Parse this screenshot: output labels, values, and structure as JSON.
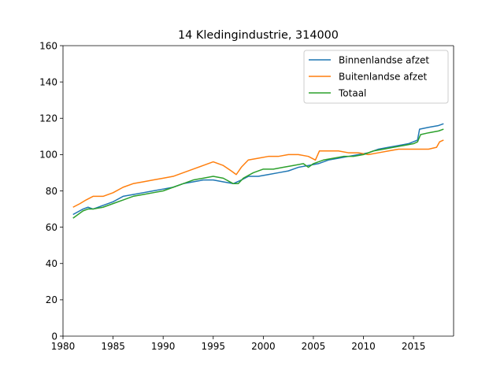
{
  "chart_data": {
    "type": "line",
    "title": "14 Kledingindustrie, 314000",
    "xlabel": "",
    "ylabel": "",
    "xlim": [
      1980,
      2019
    ],
    "ylim": [
      0,
      160
    ],
    "xticks": [
      1980,
      1985,
      1990,
      1995,
      2000,
      2005,
      2010,
      2015
    ],
    "yticks": [
      0,
      20,
      40,
      60,
      80,
      100,
      120,
      140,
      160
    ],
    "grid": false,
    "legend_position": "top-right",
    "series": [
      {
        "name": "Binnenlandse afzet",
        "color": "#1f77b4",
        "points": [
          [
            1981.0,
            67
          ],
          [
            1982.0,
            70
          ],
          [
            1982.5,
            71
          ],
          [
            1983.0,
            70
          ],
          [
            1984.0,
            72
          ],
          [
            1985.0,
            74
          ],
          [
            1986.0,
            77
          ],
          [
            1987.0,
            78
          ],
          [
            1988.0,
            79
          ],
          [
            1989.0,
            80
          ],
          [
            1990.0,
            81
          ],
          [
            1991.0,
            82
          ],
          [
            1992.0,
            84
          ],
          [
            1993.0,
            85
          ],
          [
            1994.0,
            86
          ],
          [
            1995.0,
            86
          ],
          [
            1996.0,
            85
          ],
          [
            1997.0,
            84
          ],
          [
            1997.8,
            86
          ],
          [
            1998.5,
            88
          ],
          [
            1999.5,
            88
          ],
          [
            2000.5,
            89
          ],
          [
            2001.5,
            90
          ],
          [
            2002.5,
            91
          ],
          [
            2003.5,
            93
          ],
          [
            2004.5,
            94
          ],
          [
            2005.5,
            95
          ],
          [
            2006.5,
            97
          ],
          [
            2007.5,
            98
          ],
          [
            2008.5,
            99
          ],
          [
            2009.5,
            100
          ],
          [
            2010.5,
            101
          ],
          [
            2011.5,
            103
          ],
          [
            2012.5,
            104
          ],
          [
            2013.5,
            105
          ],
          [
            2014.5,
            106
          ],
          [
            2015.4,
            108
          ],
          [
            2015.6,
            114
          ],
          [
            2016.5,
            115
          ],
          [
            2017.5,
            116
          ],
          [
            2018.0,
            117
          ]
        ]
      },
      {
        "name": "Buitenlandse afzet",
        "color": "#ff7f0e",
        "points": [
          [
            1981.0,
            71
          ],
          [
            1981.7,
            73
          ],
          [
            1982.3,
            75
          ],
          [
            1983.0,
            77
          ],
          [
            1984.0,
            77
          ],
          [
            1985.0,
            79
          ],
          [
            1986.0,
            82
          ],
          [
            1987.0,
            84
          ],
          [
            1988.0,
            85
          ],
          [
            1989.0,
            86
          ],
          [
            1990.0,
            87
          ],
          [
            1991.0,
            88
          ],
          [
            1992.0,
            90
          ],
          [
            1993.0,
            92
          ],
          [
            1994.0,
            94
          ],
          [
            1995.0,
            96
          ],
          [
            1996.0,
            94
          ],
          [
            1996.8,
            91
          ],
          [
            1997.3,
            89
          ],
          [
            1997.8,
            93
          ],
          [
            1998.5,
            97
          ],
          [
            1999.5,
            98
          ],
          [
            2000.5,
            99
          ],
          [
            2001.5,
            99
          ],
          [
            2002.5,
            100
          ],
          [
            2003.5,
            100
          ],
          [
            2004.5,
            99
          ],
          [
            2005.2,
            97
          ],
          [
            2005.6,
            102
          ],
          [
            2006.5,
            102
          ],
          [
            2007.5,
            102
          ],
          [
            2008.5,
            101
          ],
          [
            2009.5,
            101
          ],
          [
            2010.5,
            100
          ],
          [
            2011.5,
            101
          ],
          [
            2012.5,
            102
          ],
          [
            2013.5,
            103
          ],
          [
            2014.5,
            103
          ],
          [
            2015.5,
            103
          ],
          [
            2016.5,
            103
          ],
          [
            2017.3,
            104
          ],
          [
            2017.6,
            107
          ],
          [
            2018.0,
            108
          ]
        ]
      },
      {
        "name": "Totaal",
        "color": "#2ca02c",
        "points": [
          [
            1981.0,
            65
          ],
          [
            1982.0,
            69
          ],
          [
            1982.5,
            70
          ],
          [
            1983.0,
            70
          ],
          [
            1984.0,
            71
          ],
          [
            1985.0,
            73
          ],
          [
            1986.0,
            75
          ],
          [
            1987.0,
            77
          ],
          [
            1988.0,
            78
          ],
          [
            1989.0,
            79
          ],
          [
            1990.0,
            80
          ],
          [
            1991.0,
            82
          ],
          [
            1992.0,
            84
          ],
          [
            1993.0,
            86
          ],
          [
            1994.0,
            87
          ],
          [
            1995.0,
            88
          ],
          [
            1996.0,
            87
          ],
          [
            1997.0,
            84
          ],
          [
            1997.5,
            84
          ],
          [
            1998.0,
            87
          ],
          [
            1999.0,
            90
          ],
          [
            2000.0,
            92
          ],
          [
            2001.0,
            92
          ],
          [
            2002.0,
            93
          ],
          [
            2003.0,
            94
          ],
          [
            2004.0,
            95
          ],
          [
            2004.5,
            93
          ],
          [
            2005.0,
            95
          ],
          [
            2006.0,
            97
          ],
          [
            2007.0,
            98
          ],
          [
            2008.0,
            99
          ],
          [
            2009.0,
            99
          ],
          [
            2010.0,
            100
          ],
          [
            2011.0,
            102
          ],
          [
            2012.0,
            103
          ],
          [
            2013.0,
            104
          ],
          [
            2014.0,
            105
          ],
          [
            2015.0,
            106
          ],
          [
            2015.4,
            107
          ],
          [
            2015.7,
            111
          ],
          [
            2016.5,
            112
          ],
          [
            2017.5,
            113
          ],
          [
            2018.0,
            114
          ]
        ]
      }
    ]
  }
}
